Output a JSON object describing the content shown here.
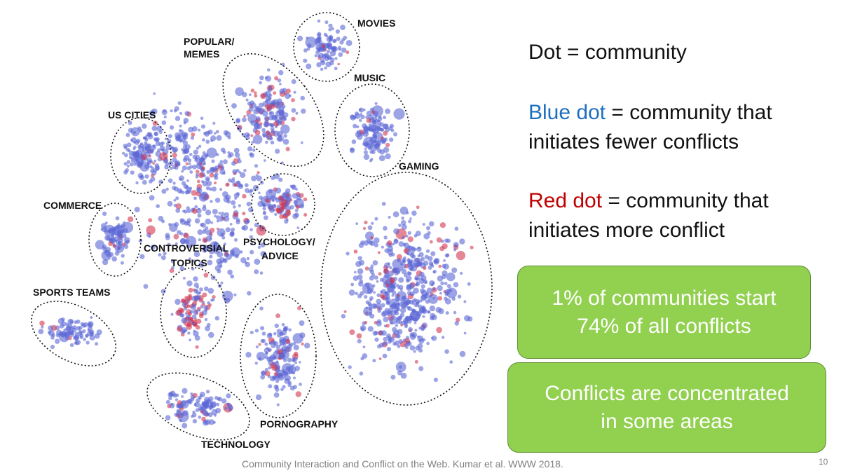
{
  "clusters": [
    {
      "key": "movies",
      "label": "MOVIES"
    },
    {
      "key": "popular_memes",
      "label": "POPULAR/",
      "label2": "MEMES"
    },
    {
      "key": "music",
      "label": "MUSIC"
    },
    {
      "key": "us_cities",
      "label": "US CITIES"
    },
    {
      "key": "gaming",
      "label": "GAMING"
    },
    {
      "key": "commerce",
      "label": "COMMERCE"
    },
    {
      "key": "controversial",
      "label": "CONTROVERSIAL",
      "label2": "TOPICS"
    },
    {
      "key": "psychology",
      "label": "PSYCHOLOGY/",
      "label2": "ADVICE"
    },
    {
      "key": "sports",
      "label": "SPORTS TEAMS"
    },
    {
      "key": "pornography",
      "label": "PORNOGRAPHY"
    },
    {
      "key": "technology",
      "label": "TECHNOLOGY"
    }
  ],
  "legend": {
    "line1": "Dot = community",
    "blue_term": "Blue dot",
    "blue_rest": " = community that",
    "blue_line2": "initiates fewer conflicts",
    "red_term": "Red dot",
    "red_rest": " = community that",
    "red_line2": "initiates more conflict"
  },
  "callouts": {
    "box1_line1": "1% of communities start",
    "box1_line2": "74% of all conflicts",
    "box2_line1": "Conflicts are concentrated",
    "box2_line2": "in some areas"
  },
  "citation": "Community Interaction and Conflict on the Web. Kumar et al. WWW 2018.",
  "slide_number": "10",
  "colors": {
    "blue_dot": "#5b67d6",
    "red_dot": "#d2354f",
    "blue_text": "#1f6fbf",
    "red_text": "#c00000",
    "box_fill": "#92d050"
  }
}
